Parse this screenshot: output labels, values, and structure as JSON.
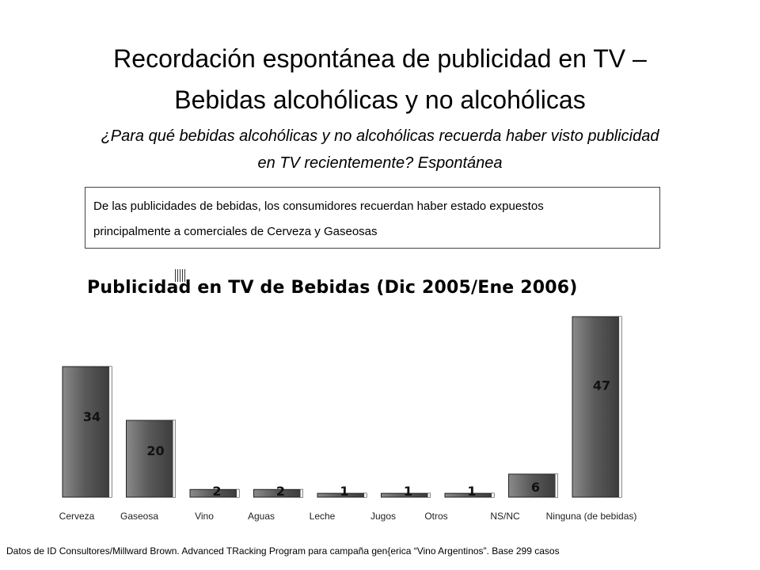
{
  "header": {
    "title_line1": "Recordación espontánea de publicidad en TV –",
    "title_line2": "Bebidas alcohólicas y no alcohólicas",
    "question_line1": "¿Para qué bebidas alcohólicas y no alcohólicas recuerda haber visto publicidad",
    "question_line2": "en TV recientemente? Espontánea"
  },
  "callout": {
    "line1": "De las publicidades de bebidas, los consumidores recuerdan haber estado expuestos",
    "line2": "principalmente a comerciales de Cerveza y Gaseosas"
  },
  "footnote": "Datos de ID Consultores/Millward Brown. Advanced TRacking Program para campaña gen{erica “Vino Argentinos”. Base 299 casos",
  "chart_data": {
    "type": "bar",
    "title": "Publicidad en TV de Bebidas (Dic 2005/Ene 2006)",
    "categories": [
      "Cerveza",
      "Gaseosa",
      "Vino",
      "Aguas",
      "Leche",
      "Jugos",
      "Otros",
      "NS/NC",
      "Ninguna (de bebidas)"
    ],
    "values": [
      34,
      20,
      2,
      2,
      1,
      1,
      1,
      6,
      47
    ],
    "xlabel": "",
    "ylabel": "",
    "ylim": [
      0,
      47
    ],
    "grid": false,
    "colors": {
      "bar_dark": "#3a3a3a",
      "bar_light": "#8a8a8a"
    }
  }
}
